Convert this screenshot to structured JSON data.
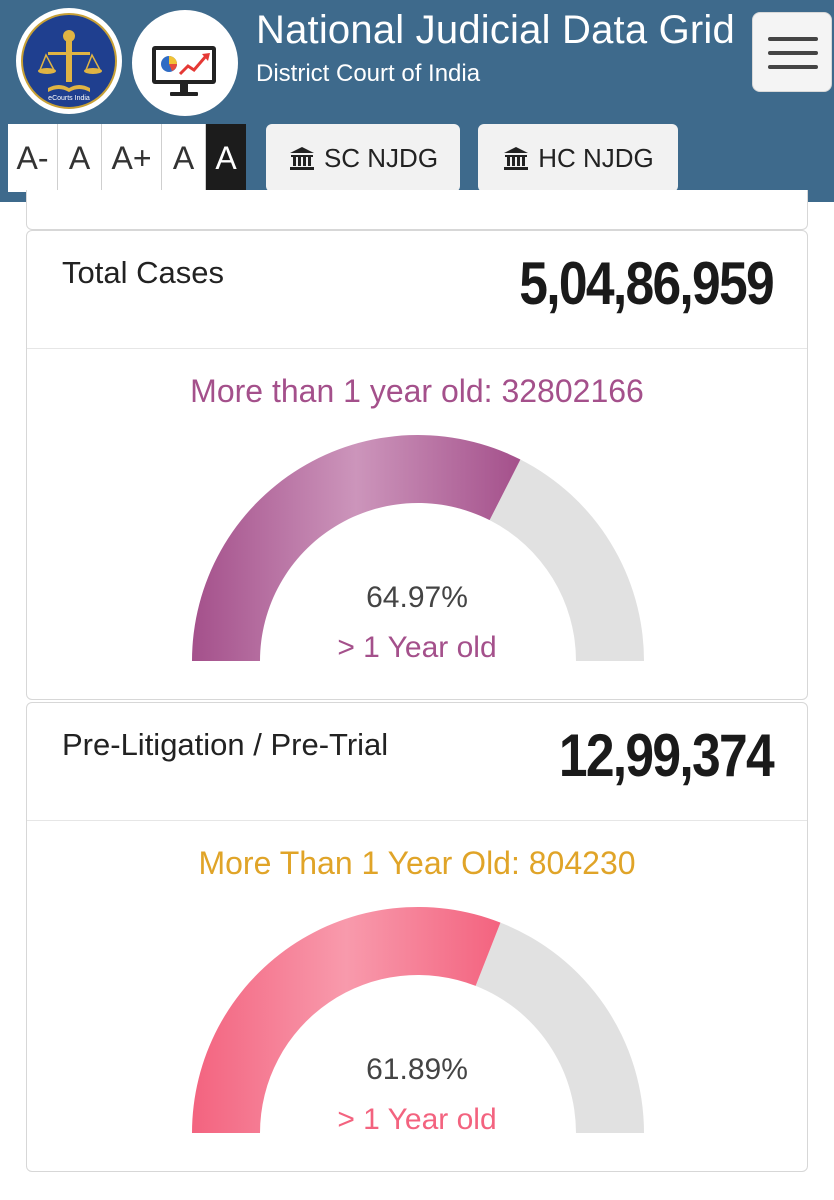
{
  "header": {
    "title": "National Judicial Data Grid",
    "subtitle": "District Court of India",
    "logo_caption": "eCourts India"
  },
  "font_controls": [
    "A-",
    "A",
    "A+",
    "A",
    "A"
  ],
  "nav": {
    "sc_label": "SC NJDG",
    "hc_label": "HC NJDG"
  },
  "colors": {
    "header_bg": "#3e6a8c",
    "purple": "#a4508b",
    "gold": "#e0a428",
    "pink": "#f3637f",
    "track": "#e1e1e1"
  },
  "cards": [
    {
      "title": "Total Cases",
      "count": "5,04,86,959",
      "old_label": "More than 1 year old: 32802166",
      "percent_label": "64.97%",
      "sub_label": "> 1 Year old",
      "percent": 64.97,
      "color": "#a4508b",
      "label_color": "#a4508b"
    },
    {
      "title": "Pre-Litigation / Pre-Trial",
      "count": "12,99,374",
      "old_label": "More Than 1 Year Old: 804230",
      "percent_label": "61.89%",
      "sub_label": "> 1 Year old",
      "percent": 61.89,
      "color": "#f3637f",
      "label_color": "#e0a428"
    }
  ]
}
